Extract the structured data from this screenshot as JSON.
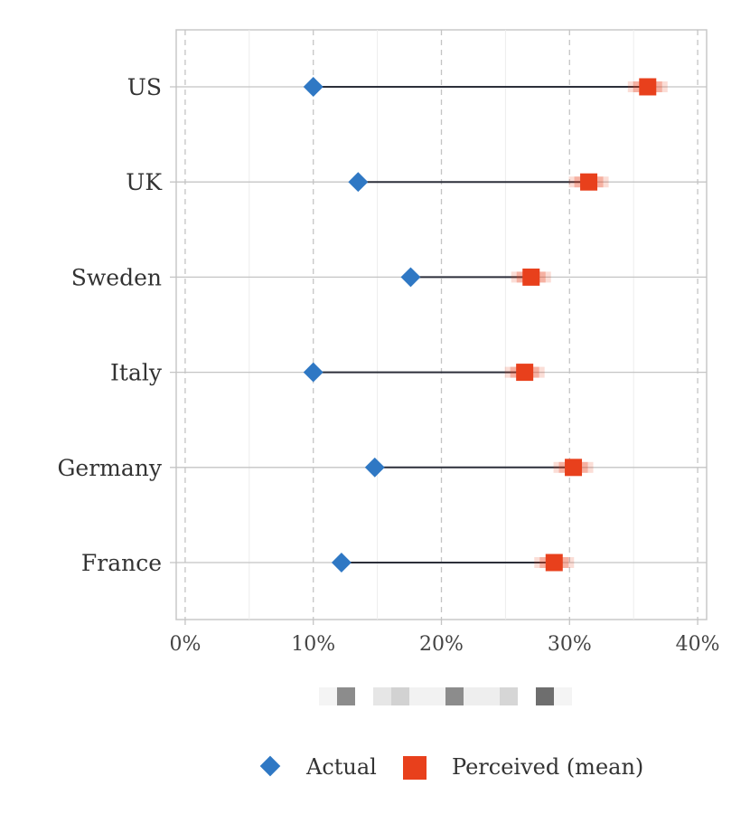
{
  "chart_data": {
    "type": "dumbbell",
    "title": "",
    "xlabel": "",
    "ylabel": "",
    "xlim": [
      -0.7,
      40.7
    ],
    "x_ticks": [
      0,
      10,
      20,
      30,
      40
    ],
    "x_tick_labels": [
      "0%",
      "10%",
      "20%",
      "30%",
      "40%"
    ],
    "grid": true,
    "legend_position": "bottom",
    "categories": [
      "US",
      "UK",
      "Sweden",
      "Italy",
      "Germany",
      "France"
    ],
    "series": [
      {
        "name": "Actual",
        "marker": "diamond",
        "color": "#2f78c4",
        "values": [
          10.0,
          13.5,
          17.6,
          10.0,
          14.8,
          12.2
        ]
      },
      {
        "name": "Perceived (mean)",
        "marker": "square",
        "color": "#e8401c",
        "values": [
          36.1,
          31.5,
          27.0,
          26.5,
          30.3,
          28.8
        ]
      }
    ]
  },
  "bottom_strip": {
    "shades": [
      "#f4f4f4",
      "#8c8c8c",
      "#ffffff",
      "#e6e6e6",
      "#d2d2d2",
      "#f2f2f2",
      "#f2f2f2",
      "#8c8c8c",
      "#eeeeee",
      "#eeeeee",
      "#d6d6d6",
      "#ffffff",
      "#6e6e6e",
      "#f4f4f4"
    ]
  }
}
